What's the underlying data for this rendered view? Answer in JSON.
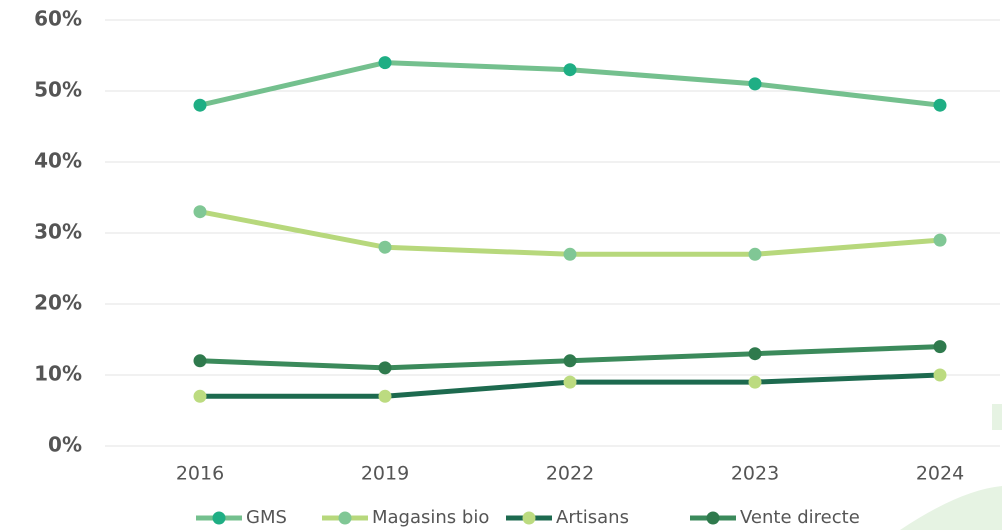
{
  "chart_data": {
    "type": "line",
    "categories": [
      "2016",
      "2019",
      "2022",
      "2023",
      "2024"
    ],
    "series": [
      {
        "name": "GMS",
        "color": "#74c08e",
        "marker_color": "#1fae84",
        "values": [
          48,
          54,
          53,
          51,
          48
        ]
      },
      {
        "name": "Magasins bio",
        "color": "#b7d87c",
        "marker_color": "#80c795",
        "values": [
          33,
          28,
          27,
          27,
          29
        ]
      },
      {
        "name": "Artisans",
        "color": "#1d6a4f",
        "marker_color": "#bcdb80",
        "values": [
          7,
          7,
          9,
          9,
          10
        ]
      },
      {
        "name": "Vente directe",
        "color": "#3b8a5b",
        "marker_color": "#2f7a4d",
        "values": [
          12,
          11,
          12,
          13,
          14
        ]
      }
    ],
    "ylim": [
      0,
      60
    ],
    "yticks": [
      {
        "value": 0,
        "label": "0%"
      },
      {
        "value": 10,
        "label": "10%"
      },
      {
        "value": 20,
        "label": "20%"
      },
      {
        "value": 30,
        "label": "30%"
      },
      {
        "value": 40,
        "label": "40%"
      },
      {
        "value": 50,
        "label": "50%"
      },
      {
        "value": 60,
        "label": "60%"
      }
    ],
    "grid": true
  }
}
